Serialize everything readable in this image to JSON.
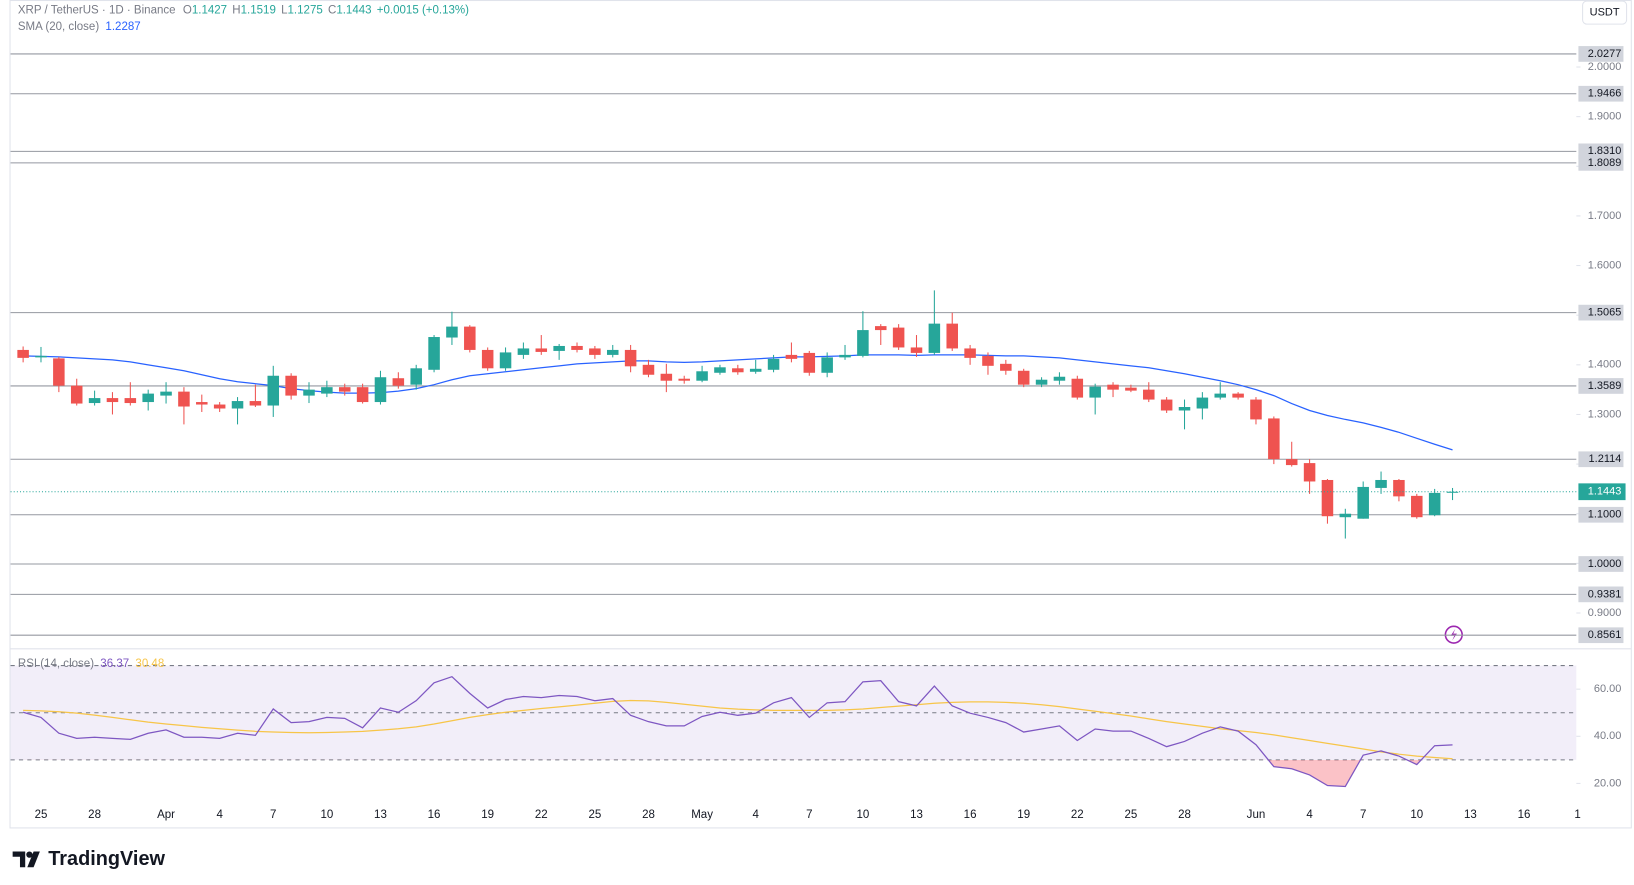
{
  "chart_data": [
    {
      "type": "candlestick",
      "title": "XRP / TetherUS · 1D · Binance",
      "currency": "USDT",
      "ohlc_labels": [
        "O",
        "H",
        "L",
        "C"
      ],
      "change": "+0.0015 (+0.13%)",
      "up_color": "#26a69a",
      "down_color": "#ef5350",
      "categories": [
        null,
        "25",
        null,
        null,
        "28",
        null,
        null,
        null,
        "Apr",
        null,
        null,
        "4",
        null,
        null,
        "7",
        null,
        null,
        "10",
        null,
        null,
        "13",
        null,
        null,
        "16",
        null,
        null,
        "19",
        null,
        null,
        "22",
        null,
        null,
        "25",
        null,
        null,
        "28",
        null,
        null,
        "May",
        null,
        null,
        "4",
        null,
        null,
        "7",
        null,
        null,
        "10",
        null,
        null,
        "13",
        null,
        null,
        "16",
        null,
        null,
        "19",
        null,
        null,
        "22",
        null,
        null,
        "25",
        null,
        null,
        "28",
        null,
        null,
        null,
        "Jun",
        null,
        null,
        "4",
        null,
        null,
        "7",
        null,
        null,
        "10",
        null,
        null,
        "13",
        null,
        null,
        "16",
        null,
        null,
        "1"
      ],
      "open": [
        1.43,
        1.415,
        1.413,
        1.358,
        1.323,
        1.333,
        1.333,
        1.325,
        1.338,
        1.346,
        1.325,
        1.32,
        1.312,
        1.327,
        1.318,
        1.378,
        1.338,
        1.342,
        1.355,
        1.355,
        1.325,
        1.373,
        1.36,
        1.39,
        1.455,
        1.477,
        1.43,
        1.393,
        1.42,
        1.433,
        1.428,
        1.438,
        1.433,
        1.42,
        1.43,
        1.4,
        1.382,
        1.372,
        1.368,
        1.384,
        1.393,
        1.386,
        1.39,
        1.42,
        1.424,
        1.384,
        1.415,
        1.418,
        1.478,
        1.475,
        1.435,
        1.424,
        1.483,
        1.433,
        1.418,
        1.402,
        1.388,
        1.36,
        1.368,
        1.372,
        1.334,
        1.36,
        1.354,
        1.35,
        1.33,
        1.308,
        1.312,
        1.334,
        1.342,
        1.33,
        1.292,
        1.21,
        1.202,
        1.168,
        1.093,
        1.09,
        1.152,
        1.168,
        1.136,
        1.097,
        1.1427,
        null,
        null,
        null,
        null,
        null,
        null,
        null
      ],
      "high": [
        1.437,
        1.436,
        1.416,
        1.372,
        1.348,
        1.345,
        1.365,
        1.35,
        1.365,
        1.355,
        1.34,
        1.325,
        1.335,
        1.36,
        1.398,
        1.383,
        1.365,
        1.368,
        1.362,
        1.362,
        1.388,
        1.385,
        1.4,
        1.46,
        1.507,
        1.48,
        1.435,
        1.435,
        1.445,
        1.46,
        1.442,
        1.445,
        1.438,
        1.44,
        1.44,
        1.41,
        1.402,
        1.378,
        1.398,
        1.4,
        1.4,
        1.41,
        1.42,
        1.445,
        1.428,
        1.425,
        1.44,
        1.508,
        1.482,
        1.482,
        1.46,
        1.55,
        1.505,
        1.44,
        1.425,
        1.41,
        1.392,
        1.375,
        1.385,
        1.378,
        1.362,
        1.365,
        1.36,
        1.365,
        1.335,
        1.33,
        1.345,
        1.365,
        1.345,
        1.335,
        1.296,
        1.245,
        1.21,
        1.17,
        1.11,
        1.165,
        1.185,
        1.17,
        1.14,
        1.15,
        1.1519,
        null,
        null,
        null,
        null,
        null,
        null,
        null
      ],
      "low": [
        1.405,
        1.405,
        1.345,
        1.318,
        1.318,
        1.3,
        1.318,
        1.308,
        1.322,
        1.28,
        1.305,
        1.305,
        1.28,
        1.315,
        1.295,
        1.33,
        1.323,
        1.335,
        1.338,
        1.322,
        1.32,
        1.352,
        1.35,
        1.385,
        1.44,
        1.425,
        1.388,
        1.388,
        1.412,
        1.42,
        1.41,
        1.425,
        1.412,
        1.415,
        1.385,
        1.375,
        1.345,
        1.362,
        1.365,
        1.38,
        1.38,
        1.382,
        1.385,
        1.405,
        1.378,
        1.375,
        1.41,
        1.415,
        1.44,
        1.43,
        1.416,
        1.42,
        1.428,
        1.4,
        1.38,
        1.38,
        1.355,
        1.355,
        1.36,
        1.33,
        1.3,
        1.335,
        1.345,
        1.325,
        1.303,
        1.27,
        1.29,
        1.33,
        1.33,
        1.28,
        1.2,
        1.195,
        1.14,
        1.08,
        1.05,
        1.09,
        1.14,
        1.125,
        1.09,
        1.095,
        1.1275,
        null,
        null,
        null,
        null,
        null,
        null,
        null
      ],
      "close": [
        1.414,
        1.418,
        1.358,
        1.322,
        1.333,
        1.325,
        1.323,
        1.342,
        1.346,
        1.316,
        1.32,
        1.312,
        1.327,
        1.318,
        1.378,
        1.338,
        1.35,
        1.355,
        1.346,
        1.325,
        1.375,
        1.358,
        1.393,
        1.456,
        1.477,
        1.43,
        1.393,
        1.425,
        1.433,
        1.426,
        1.438,
        1.43,
        1.42,
        1.43,
        1.397,
        1.38,
        1.368,
        1.368,
        1.387,
        1.395,
        1.385,
        1.392,
        1.412,
        1.412,
        1.384,
        1.415,
        1.42,
        1.47,
        1.47,
        1.435,
        1.424,
        1.483,
        1.433,
        1.414,
        1.398,
        1.388,
        1.36,
        1.37,
        1.376,
        1.334,
        1.356,
        1.35,
        1.348,
        1.33,
        1.308,
        1.315,
        1.334,
        1.342,
        1.334,
        1.29,
        1.21,
        1.198,
        1.165,
        1.095,
        1.1,
        1.154,
        1.168,
        1.135,
        1.093,
        1.142,
        1.1443,
        null,
        null,
        null,
        null,
        null,
        null,
        null
      ],
      "series": [
        {
          "name": "SMA (20, close)",
          "color": "#2962ff",
          "values": [
            1.418,
            1.417,
            1.416,
            1.414,
            1.412,
            1.41,
            1.406,
            1.4,
            1.394,
            1.388,
            1.38,
            1.372,
            1.366,
            1.362,
            1.358,
            1.352,
            1.348,
            1.345,
            1.343,
            1.343,
            1.344,
            1.347,
            1.352,
            1.36,
            1.37,
            1.378,
            1.382,
            1.386,
            1.39,
            1.394,
            1.398,
            1.402,
            1.404,
            1.406,
            1.408,
            1.408,
            1.406,
            1.405,
            1.406,
            1.408,
            1.41,
            1.412,
            1.414,
            1.416,
            1.416,
            1.417,
            1.418,
            1.42,
            1.42,
            1.42,
            1.419,
            1.42,
            1.42,
            1.42,
            1.419,
            1.418,
            1.418,
            1.416,
            1.414,
            1.41,
            1.406,
            1.402,
            1.398,
            1.394,
            1.388,
            1.382,
            1.375,
            1.368,
            1.36,
            1.35,
            1.338,
            1.322,
            1.308,
            1.298,
            1.29,
            1.283,
            1.274,
            1.264,
            1.252,
            1.24,
            1.2287,
            null,
            null,
            null,
            null,
            null,
            null,
            null
          ]
        }
      ],
      "ylim": [
        0.831,
        2.135
      ],
      "yticks": [
        {
          "value": 0.9,
          "label": "0.9000"
        },
        {
          "value": 1.0,
          "label": "1.0000"
        },
        {
          "value": 1.1,
          "label": "1.1000"
        },
        {
          "value": 1.2,
          "label": "1.2000"
        },
        {
          "value": 1.3,
          "label": "1.3000"
        },
        {
          "value": 1.4,
          "label": "1.4000"
        },
        {
          "value": 1.5,
          "label": "1.5000"
        },
        {
          "value": 1.6,
          "label": "1.6000"
        },
        {
          "value": 1.7,
          "label": "1.7000"
        },
        {
          "value": 1.8,
          "label": "1.8000"
        },
        {
          "value": 1.9,
          "label": "1.9000"
        },
        {
          "value": 2.0,
          "label": "2.0000"
        }
      ],
      "levels": [
        2.0277,
        1.9466,
        {
          "value": 1.831,
          "label": "1.8310"
        },
        1.8089,
        1.5065,
        1.3589,
        1.2114,
        {
          "value": 1.1,
          "label": "1.1000"
        },
        {
          "value": 1.0,
          "label": "1.0000"
        },
        0.9381,
        0.8561
      ]
    },
    {
      "type": "line",
      "title": "RSI (14, close)",
      "series": [
        {
          "color": "#7e57c2",
          "values": [
            50.2,
            48.0,
            41.3,
            39.1,
            39.6,
            39.1,
            38.7,
            41.3,
            42.7,
            39.6,
            39.6,
            39.1,
            41.3,
            40.4,
            51.6,
            45.8,
            46.2,
            48.0,
            47.6,
            43.6,
            52.0,
            50.2,
            55.1,
            62.7,
            65.3,
            58.2,
            52.0,
            55.6,
            56.9,
            56.4,
            57.3,
            56.9,
            55.1,
            56.0,
            48.9,
            46.2,
            44.4,
            44.4,
            48.4,
            50.2,
            48.9,
            49.8,
            54.2,
            56.4,
            48.0,
            54.2,
            54.7,
            63.1,
            63.6,
            54.7,
            52.9,
            61.3,
            52.9,
            49.8,
            48.0,
            45.8,
            41.8,
            43.1,
            44.4,
            38.2,
            43.1,
            42.2,
            42.2,
            39.1,
            35.6,
            37.8,
            41.3,
            44.0,
            42.2,
            36.4,
            27.1,
            26.2,
            23.6,
            19.1,
            18.7,
            32.0,
            33.8,
            31.6,
            28.0,
            36.0,
            36.37,
            null,
            null,
            null,
            null,
            null,
            null,
            null
          ]
        },
        {
          "color": "#f7c548",
          "values": [
            51.0,
            50.8,
            50.4,
            49.8,
            49.0,
            48.0,
            47.0,
            46.0,
            45.2,
            44.5,
            43.8,
            43.2,
            42.6,
            42.1,
            41.8,
            41.6,
            41.5,
            41.6,
            41.8,
            42.1,
            42.6,
            43.2,
            44.0,
            45.2,
            46.6,
            48.0,
            49.2,
            50.2,
            51.0,
            51.8,
            52.5,
            53.2,
            54.0,
            54.8,
            55.2,
            55.0,
            54.4,
            53.6,
            52.8,
            52.0,
            51.5,
            51.2,
            51.0,
            51.0,
            51.0,
            51.0,
            51.2,
            51.6,
            52.2,
            52.8,
            53.4,
            54.0,
            54.4,
            54.6,
            54.6,
            54.4,
            54.0,
            53.4,
            52.6,
            51.6,
            50.6,
            49.6,
            48.6,
            47.4,
            46.2,
            45.2,
            44.2,
            43.2,
            42.4,
            41.6,
            40.6,
            39.4,
            38.2,
            37.0,
            35.8,
            34.6,
            33.4,
            32.4,
            31.6,
            31.0,
            30.48,
            null,
            null,
            null,
            null,
            null,
            null,
            null
          ]
        }
      ],
      "ylim": [
        12,
        76
      ],
      "yticks": [
        {
          "value": 20,
          "label": "20.00"
        },
        {
          "value": 40,
          "label": "40.00"
        },
        {
          "value": 60,
          "label": "60.00"
        }
      ],
      "band": [
        30,
        70
      ],
      "midline": 50,
      "band_color": "#7e57c2",
      "oversold_color": "#f23645"
    }
  ],
  "brand": "TradingView"
}
